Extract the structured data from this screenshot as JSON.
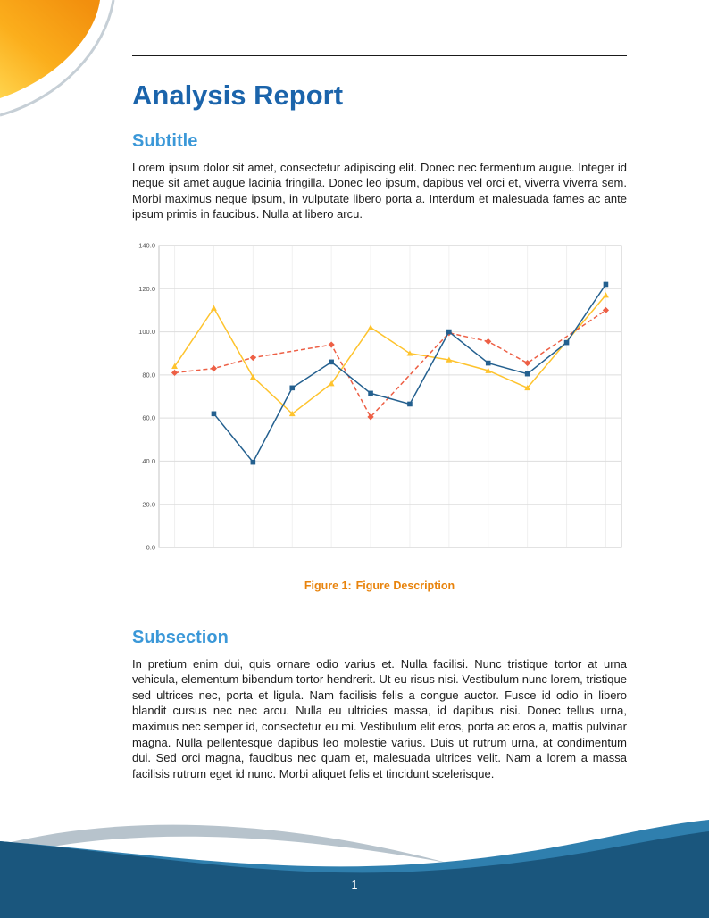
{
  "header": {
    "title": "Analysis Report"
  },
  "sections": [
    {
      "heading": "Subtitle",
      "body": "Lorem ipsum dolor sit amet, consectetur adipiscing elit. Donec nec fermentum augue. Integer id neque sit amet augue lacinia fringilla. Donec leo ipsum, dapibus vel orci et, viverra viverra sem. Morbi maximus neque ipsum, in vulputate libero porta a. Interdum et malesuada fames ac ante ipsum primis in faucibus. Nulla at libero arcu."
    },
    {
      "heading": "Subsection",
      "body": "In pretium enim dui, quis ornare odio varius et. Nulla facilisi. Nunc tristique tortor at urna vehicula, elementum bibendum tortor hendrerit. Ut eu risus nisi. Vestibulum nunc lorem, tristique sed ultrices nec, porta et ligula. Nam facilisis felis a congue auctor. Fusce id odio in libero blandit cursus nec nec arcu. Nulla eu ultricies massa, id dapibus nisi. Donec tellus urna, maximus nec semper id, consectetur eu mi. Vestibulum elit eros, porta ac eros a, mattis pulvinar magna. Nulla pellentesque dapibus leo molestie varius. Duis ut rutrum urna, at condimentum dui. Sed orci magna, faucibus nec quam et, malesuada ultrices velit. Nam a lorem a massa facilisis rutrum eget id nunc. Morbi aliquet felis et tincidunt scelerisque."
    }
  ],
  "figure": {
    "caption_label": "Figure 1:",
    "caption_text": "Figure Description"
  },
  "page": {
    "number": "1"
  },
  "colors": {
    "title_blue": "#1b64ab",
    "heading_blue": "#3b98d8",
    "caption_orange": "#e8830c",
    "body_text": "#1c1c1c",
    "footer_navy": "#1a567d",
    "footer_light_blue": "#2f7fae",
    "footer_gray": "#b7c3cc",
    "corner_orange": "#f28f0d",
    "corner_yellow": "#ffd44d"
  },
  "chart_data": {
    "type": "line",
    "title": "",
    "xlabel": "",
    "ylabel": "",
    "xlim": [
      0.6,
      12.4
    ],
    "ylim": [
      0,
      140
    ],
    "ytick_step": 20,
    "ytick_labels": [
      "0.0",
      "20.0",
      "40.0",
      "60.0",
      "80.0",
      "100.0",
      "120.0",
      "140.0"
    ],
    "xticks": [
      1,
      2,
      3,
      4,
      5,
      6,
      7,
      8,
      9,
      10,
      11,
      12
    ],
    "grid": true,
    "legend": "none",
    "series": [
      {
        "name": "series-yellow",
        "color": "#fec32d",
        "line_style": "solid",
        "marker": "triangle",
        "x": [
          1,
          2,
          3,
          4,
          5,
          6,
          7,
          8,
          9,
          10,
          12
        ],
        "y": [
          84,
          111,
          79,
          62,
          76,
          102,
          90,
          87,
          82,
          74,
          117
        ]
      },
      {
        "name": "series-red",
        "color": "#ed5f45",
        "line_style": "dashed",
        "marker": "diamond",
        "x": [
          1,
          2,
          3,
          5,
          6,
          8,
          9,
          10,
          12
        ],
        "y": [
          81,
          83,
          88,
          94,
          60.5,
          99.5,
          95.5,
          85.5,
          110
        ]
      },
      {
        "name": "series-blue",
        "color": "#24608f",
        "line_style": "solid",
        "marker": "square",
        "x": [
          2,
          3,
          4,
          5,
          6,
          7,
          8,
          9,
          10,
          11,
          12
        ],
        "y": [
          62,
          39.5,
          74,
          86,
          71.5,
          66.5,
          100,
          85.5,
          80.5,
          95,
          122
        ]
      }
    ]
  }
}
